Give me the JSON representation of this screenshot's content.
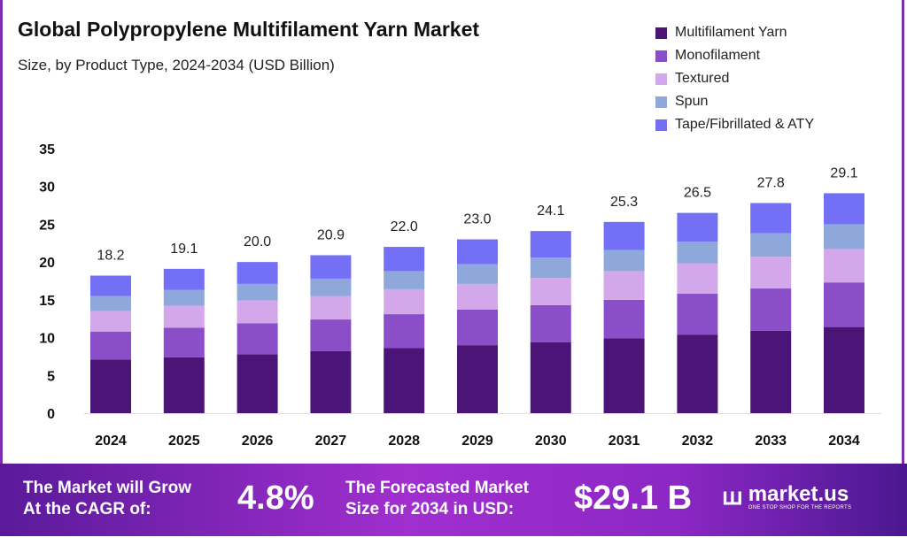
{
  "chart_data": {
    "type": "bar",
    "stacked": true,
    "title": "Global Polypropylene Multifilament Yarn Market",
    "subtitle": "Size, by Product Type, 2024-2034 (USD Billion)",
    "categories": [
      "2024",
      "2025",
      "2026",
      "2027",
      "2028",
      "2029",
      "2030",
      "2031",
      "2032",
      "2033",
      "2034"
    ],
    "totals": [
      "18.2",
      "19.1",
      "20.0",
      "20.9",
      "22.0",
      "23.0",
      "24.1",
      "25.3",
      "26.5",
      "27.8",
      "29.1"
    ],
    "series": [
      {
        "name": "Multifilament Yarn",
        "color": "#4b1578",
        "values": [
          7.1,
          7.4,
          7.8,
          8.2,
          8.6,
          9.0,
          9.4,
          9.9,
          10.4,
          10.9,
          11.4
        ]
      },
      {
        "name": "Monofilament",
        "color": "#8a4fc8",
        "values": [
          3.7,
          3.9,
          4.1,
          4.2,
          4.5,
          4.7,
          4.9,
          5.1,
          5.4,
          5.6,
          5.9
        ]
      },
      {
        "name": "Textured",
        "color": "#d3a8ea",
        "values": [
          2.7,
          2.9,
          3.0,
          3.1,
          3.3,
          3.4,
          3.6,
          3.8,
          4.0,
          4.2,
          4.4
        ]
      },
      {
        "name": "Spun",
        "color": "#8fa8dc",
        "values": [
          2.0,
          2.1,
          2.2,
          2.3,
          2.4,
          2.6,
          2.7,
          2.8,
          2.9,
          3.1,
          3.3
        ]
      },
      {
        "name": "Tape/Fibrillated & ATY",
        "color": "#7470f5",
        "values": [
          2.7,
          2.8,
          2.9,
          3.1,
          3.2,
          3.3,
          3.5,
          3.7,
          3.8,
          4.0,
          4.1
        ]
      }
    ],
    "yticks": [
      "0",
      "5",
      "10",
      "15",
      "20",
      "25",
      "30",
      "35"
    ],
    "ylim": [
      0,
      35
    ],
    "grid": false,
    "legend_position": "top-right"
  },
  "footer": {
    "cagr_label_1": "The Market will Grow",
    "cagr_label_2": "At the CAGR of:",
    "cagr_value": "4.8%",
    "forecast_label_1": "The Forecasted Market",
    "forecast_label_2": "Size for 2034 in USD:",
    "forecast_value": "$29.1 B",
    "brand": "market.us",
    "tagline": "ONE STOP SHOP FOR THE REPORTS"
  }
}
